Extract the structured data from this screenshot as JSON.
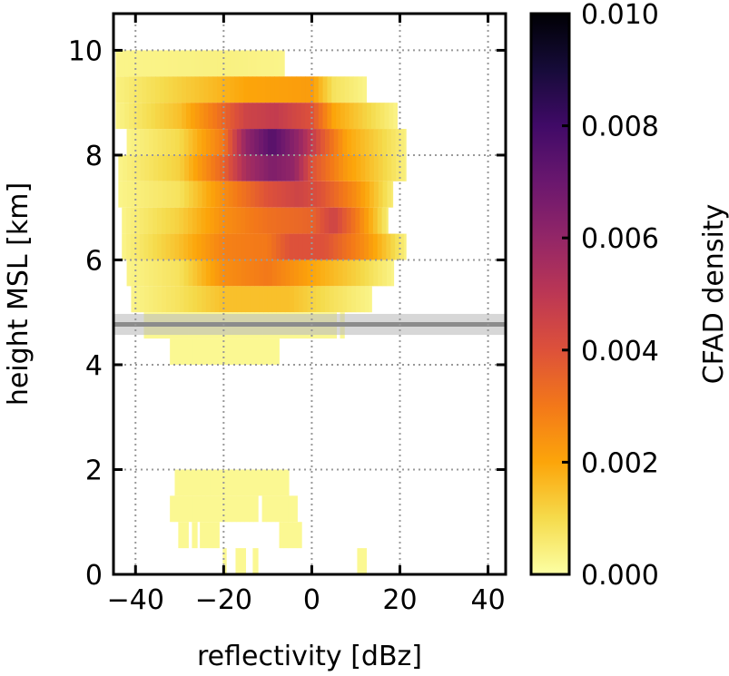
{
  "chart_data": {
    "type": "heatmap",
    "title": "",
    "xlabel": "reflectivity [dBz]",
    "ylabel": "height MSL [km]",
    "colorbar_label": "CFAD density",
    "xlim": [
      -45,
      44
    ],
    "ylim": [
      0,
      10.7
    ],
    "xticks": [
      -40,
      -20,
      0,
      20,
      40
    ],
    "xtick_labels": [
      "−40",
      "−20",
      "0",
      "20",
      "40"
    ],
    "yticks": [
      0,
      2,
      4,
      6,
      8,
      10
    ],
    "ytick_labels": [
      "0",
      "2",
      "4",
      "6",
      "8",
      "10"
    ],
    "colorbar_range": [
      0,
      0.01
    ],
    "colorbar_ticks": [
      0,
      0.002,
      0.004,
      0.006,
      0.008,
      0.01
    ],
    "colorbar_tick_labels": [
      "0.000",
      "0.002",
      "0.004",
      "0.006",
      "0.008",
      "0.010"
    ],
    "colormap": "inferno_r",
    "grid": true,
    "height_bin_km": 0.5,
    "reflectivity_bin_dbz": 1,
    "rows": [
      {
        "z0": 9.5,
        "segments": [
          [
            -44.5,
            -6.2
          ]
        ],
        "profile": [
          [
            -44.5,
            0.0003
          ],
          [
            -20,
            0.0004
          ],
          [
            -6.2,
            0.0003
          ]
        ]
      },
      {
        "z0": 9.0,
        "segments": [
          [
            -44.5,
            12.4
          ]
        ],
        "profile": [
          [
            -44.5,
            0.0004
          ],
          [
            -30,
            0.0012
          ],
          [
            -15,
            0.002
          ],
          [
            0,
            0.0022
          ],
          [
            5,
            0.0008
          ],
          [
            12.4,
            0.0003
          ]
        ]
      },
      {
        "z0": 8.5,
        "segments": [
          [
            -44.5,
            19.4
          ]
        ],
        "profile": [
          [
            -44.5,
            0.0003
          ],
          [
            -30,
            0.0015
          ],
          [
            -22,
            0.003
          ],
          [
            -15,
            0.0045
          ],
          [
            -8,
            0.0048
          ],
          [
            0,
            0.004
          ],
          [
            5,
            0.002
          ],
          [
            19.4,
            0.0003
          ]
        ]
      },
      {
        "z0": 8.0,
        "segments": [
          [
            -42,
            21.4
          ]
        ],
        "profile": [
          [
            -42,
            0.0003
          ],
          [
            -30,
            0.001
          ],
          [
            -20,
            0.003
          ],
          [
            -15,
            0.006
          ],
          [
            -9,
            0.0075
          ],
          [
            -3,
            0.006
          ],
          [
            2,
            0.004
          ],
          [
            8,
            0.002
          ],
          [
            21.4,
            0.0004
          ]
        ]
      },
      {
        "z0": 7.5,
        "segments": [
          [
            -43.9,
            21.4
          ]
        ],
        "profile": [
          [
            -43.9,
            0.0003
          ],
          [
            -30,
            0.0012
          ],
          [
            -20,
            0.0035
          ],
          [
            -15,
            0.0055
          ],
          [
            -9,
            0.0065
          ],
          [
            -4,
            0.006
          ],
          [
            0,
            0.004
          ],
          [
            8,
            0.0022
          ],
          [
            21.4,
            0.0004
          ]
        ]
      },
      {
        "z0": 7.0,
        "segments": [
          [
            -43.9,
            18.4
          ]
        ],
        "profile": [
          [
            -43.9,
            0.0003
          ],
          [
            -30,
            0.0008
          ],
          [
            -20,
            0.0025
          ],
          [
            -10,
            0.004
          ],
          [
            -3,
            0.0045
          ],
          [
            2,
            0.004
          ],
          [
            10,
            0.0025
          ],
          [
            18.4,
            0.0005
          ]
        ]
      },
      {
        "z0": 6.5,
        "segments": [
          [
            -43.1,
            17.3
          ]
        ],
        "profile": [
          [
            -43.1,
            0.0003
          ],
          [
            -30,
            0.0012
          ],
          [
            -20,
            0.0025
          ],
          [
            -10,
            0.0032
          ],
          [
            0,
            0.0035
          ],
          [
            5,
            0.0045
          ],
          [
            10,
            0.003
          ],
          [
            17.3,
            0.0005
          ]
        ]
      },
      {
        "z0": 6.0,
        "segments": [
          [
            -43.1,
            21.4
          ]
        ],
        "profile": [
          [
            -43.1,
            0.0003
          ],
          [
            -30,
            0.0015
          ],
          [
            -20,
            0.0028
          ],
          [
            -10,
            0.003
          ],
          [
            -5,
            0.004
          ],
          [
            3,
            0.004
          ],
          [
            12,
            0.0025
          ],
          [
            21.4,
            0.0004
          ]
        ]
      },
      {
        "z0": 5.5,
        "segments": [
          [
            -42,
            18.6
          ]
        ],
        "profile": [
          [
            -42,
            0.0003
          ],
          [
            -30,
            0.0008
          ],
          [
            -20,
            0.0025
          ],
          [
            -10,
            0.003
          ],
          [
            0,
            0.002
          ],
          [
            10,
            0.0012
          ],
          [
            18.6,
            0.0003
          ]
        ]
      },
      {
        "z0": 5.0,
        "segments": [
          [
            -41,
            13.6
          ]
        ],
        "profile": [
          [
            -41,
            0.0003
          ],
          [
            -30,
            0.0008
          ],
          [
            -20,
            0.0015
          ],
          [
            -5,
            0.0015
          ],
          [
            5,
            0.0008
          ],
          [
            13.6,
            0.0003
          ]
        ]
      },
      {
        "z0": 4.5,
        "segments": [
          [
            -38.1,
            5.6
          ],
          [
            6.4,
            7.4
          ]
        ],
        "profile": [
          [
            -38.1,
            0.0002
          ],
          [
            7.4,
            0.0002
          ]
        ]
      },
      {
        "z0": 4.0,
        "segments": [
          [
            -32.2,
            -7.4
          ]
        ],
        "profile": [
          [
            -32.2,
            0.0002
          ],
          [
            -7.4,
            0.0002
          ]
        ]
      },
      {
        "z0": 1.5,
        "segments": [
          [
            -31.1,
            -5.2
          ]
        ],
        "profile": [
          [
            -31.1,
            0.0002
          ],
          [
            -5.2,
            0.0002
          ]
        ]
      },
      {
        "z0": 1.0,
        "segments": [
          [
            -32.2,
            -12.2
          ],
          [
            -11.3,
            -3.3
          ]
        ],
        "profile": [
          [
            -32.2,
            0.0002
          ],
          [
            -3.3,
            0.0002
          ]
        ]
      },
      {
        "z0": 0.5,
        "segments": [
          [
            -30.3,
            -28
          ],
          [
            -27.2,
            -26
          ],
          [
            -25.4,
            -21
          ],
          [
            -7.4,
            -2.3
          ]
        ],
        "profile": [
          [
            -30.3,
            0.0002
          ],
          [
            -2.3,
            0.0002
          ]
        ]
      },
      {
        "z0": 0.0,
        "segments": [
          [
            -20.2,
            -19.4
          ],
          [
            -17.3,
            -15
          ],
          [
            -13.4,
            -12.2
          ],
          [
            10.3,
            12.4
          ]
        ],
        "profile": [
          [
            -20.2,
            0.0002
          ],
          [
            12.4,
            0.0002
          ]
        ]
      }
    ],
    "reference_line": {
      "height_km": 4.77,
      "band_km": [
        4.57,
        4.97
      ],
      "color": "#8c8c8c"
    }
  }
}
